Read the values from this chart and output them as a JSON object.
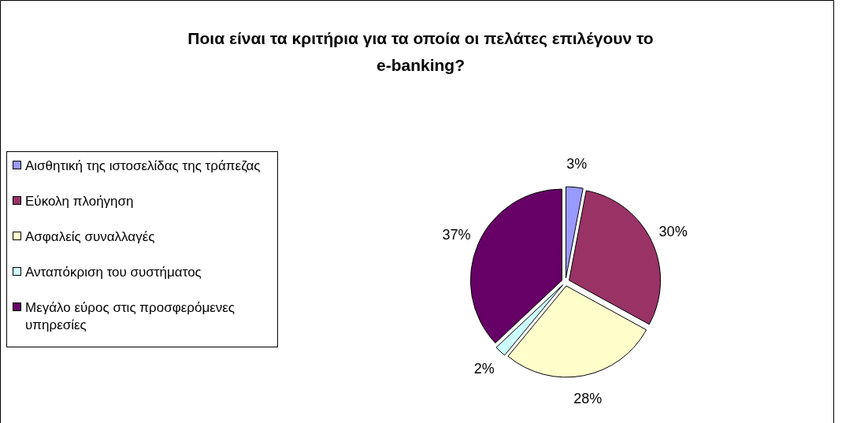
{
  "chart_data": {
    "type": "pie",
    "title": "Ποια είναι τα κριτήρια για τα οποία οι πελάτες επιλέγουν το e-banking?",
    "categories": [
      "Αισθητική της ιστοσελίδας της τράπεζας",
      "Εύκολη πλοήγηση",
      "Ασφαλείς συναλλαγές",
      "Ανταπόκριση του συστήματος",
      "Μεγάλο εύρος στις προσφερόμενες υπηρεσίες"
    ],
    "values": [
      3,
      30,
      28,
      2,
      37
    ],
    "value_labels": [
      "3%",
      "30%",
      "28%",
      "2%",
      "37%"
    ],
    "colors": [
      "#9999ff",
      "#993366",
      "#ffffcc",
      "#ccffff",
      "#660066"
    ],
    "legend": "left"
  }
}
